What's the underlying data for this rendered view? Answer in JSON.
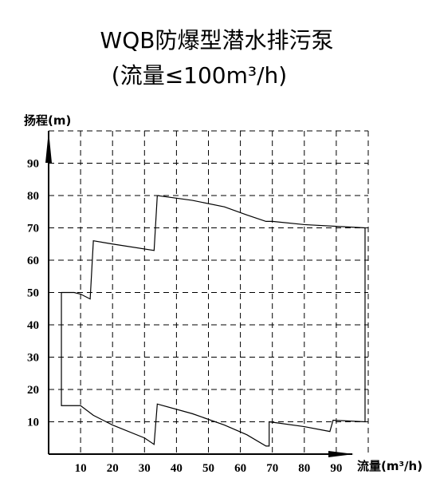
{
  "chart_data": {
    "type": "line",
    "title": "WQB防爆型潜水排污泵",
    "subtitle": "(流量≤100m³/h)",
    "y_label": "扬程(m)",
    "x_label": "流量(m³/h)",
    "x": [
      4,
      8,
      10,
      13,
      14,
      20,
      33,
      34,
      45,
      55,
      62,
      68,
      70,
      80,
      99,
      99,
      89,
      88,
      80,
      69,
      69,
      68,
      62,
      55,
      45,
      34,
      33,
      30,
      20,
      14,
      10,
      4,
      4
    ],
    "values": [
      50,
      50,
      49.5,
      48,
      66,
      65,
      63,
      80,
      78.5,
      76.5,
      74,
      72,
      72,
      71,
      70,
      10,
      10.5,
      7,
      8.5,
      10,
      2.5,
      2.5,
      6,
      9,
      12.5,
      15.5,
      3,
      5,
      9,
      12,
      15,
      15,
      50
    ],
    "color": "#000000",
    "xlim": [
      0,
      100
    ],
    "ylim": [
      0,
      100
    ],
    "xticks": [
      10,
      20,
      30,
      40,
      50,
      60,
      70,
      80,
      90
    ],
    "yticks": [
      10,
      20,
      30,
      40,
      50,
      60,
      70,
      80,
      90
    ],
    "grid": true
  }
}
